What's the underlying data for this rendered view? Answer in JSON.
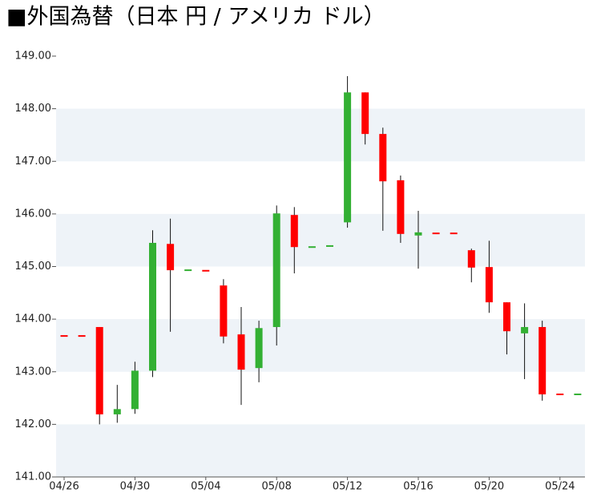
{
  "chart_data": {
    "type": "candlestick",
    "title": "■外国為替（日本 円 / アメリカ ドル）",
    "categories": [
      "04/26",
      null,
      null,
      null,
      "04/30",
      null,
      null,
      null,
      "05/04",
      null,
      null,
      null,
      "05/08",
      null,
      null,
      null,
      "05/12",
      null,
      null,
      null,
      "05/16",
      null,
      null,
      null,
      "05/20",
      null,
      null,
      null,
      "05/24",
      null
    ],
    "open": [
      143.68,
      143.68,
      143.85,
      142.19,
      142.29,
      143.02,
      145.43,
      144.93,
      144.92,
      144.64,
      143.71,
      143.07,
      143.85,
      145.98,
      145.37,
      145.39,
      145.84,
      148.31,
      147.52,
      146.64,
      145.59,
      145.63,
      145.63,
      145.31,
      144.99,
      144.32,
      143.73,
      143.85,
      142.57,
      142.57
    ],
    "high": [
      143.68,
      143.68,
      143.85,
      142.75,
      143.19,
      145.69,
      145.91,
      144.93,
      144.92,
      144.76,
      144.23,
      143.97,
      146.16,
      146.13,
      145.37,
      145.39,
      148.62,
      148.31,
      147.64,
      146.73,
      146.06,
      145.63,
      145.63,
      145.34,
      145.49,
      144.32,
      144.3,
      143.97,
      142.57,
      142.57
    ],
    "low": [
      143.68,
      143.68,
      142.0,
      142.03,
      142.2,
      142.9,
      143.76,
      144.93,
      144.92,
      143.54,
      142.37,
      142.8,
      143.5,
      144.87,
      145.37,
      145.39,
      145.74,
      147.32,
      145.68,
      145.45,
      144.96,
      145.63,
      145.63,
      144.7,
      144.12,
      143.33,
      142.86,
      142.45,
      142.57,
      142.57
    ],
    "close": [
      143.68,
      143.68,
      142.19,
      142.29,
      143.02,
      145.45,
      144.93,
      144.93,
      144.92,
      143.67,
      143.04,
      143.83,
      146.01,
      145.37,
      145.37,
      145.39,
      148.31,
      147.52,
      146.62,
      145.62,
      145.65,
      145.63,
      145.63,
      144.98,
      144.32,
      143.77,
      143.85,
      142.57,
      142.57,
      142.57
    ],
    "colors": [
      "#ff0000",
      "#ff0000",
      "#ff0000",
      "#33b033",
      "#33b033",
      "#33b033",
      "#ff0000",
      "#33b033",
      "#ff0000",
      "#ff0000",
      "#ff0000",
      "#33b033",
      "#33b033",
      "#ff0000",
      "#33b033",
      "#33b033",
      "#33b033",
      "#ff0000",
      "#ff0000",
      "#ff0000",
      "#33b033",
      "#ff0000",
      "#ff0000",
      "#ff0000",
      "#ff0000",
      "#ff0000",
      "#33b033",
      "#ff0000",
      "#ff0000",
      "#33b033"
    ],
    "ylim": [
      141,
      149
    ],
    "yticks": [
      {
        "value": 141,
        "label": "141.00"
      },
      {
        "value": 142,
        "label": "142.00"
      },
      {
        "value": 143,
        "label": "143.00"
      },
      {
        "value": 144,
        "label": "144.00"
      },
      {
        "value": 145,
        "label": "145.00"
      },
      {
        "value": 146,
        "label": "146.00"
      },
      {
        "value": 147,
        "label": "147.00"
      },
      {
        "value": 148,
        "label": "148.00"
      },
      {
        "value": 149,
        "label": "149.00"
      }
    ],
    "band_color": "#eef3f8"
  }
}
